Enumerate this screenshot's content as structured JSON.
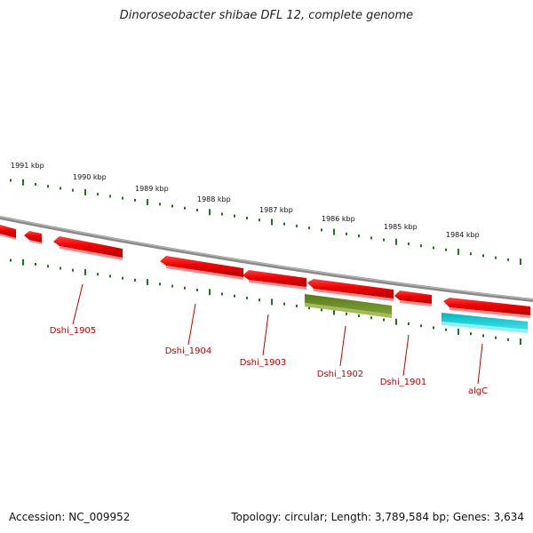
{
  "title": "Dinoroseobacter shibae DFL 12, complete genome",
  "footer": {
    "accession": "Accession: NC_009952",
    "summary": "Topology: circular; Length: 3,789,584 bp; Genes: 3,634"
  },
  "colors": {
    "backbone": "#888888",
    "tick": "#1a7a1a",
    "gene_red": "#ee0000",
    "gene_olive": "#6b8e23",
    "gene_cyan": "#00c8d0",
    "label": "#c00000"
  },
  "scale_labels": [
    "1991 kbp",
    "1990 kbp",
    "1989 kbp",
    "1988 kbp",
    "1987 kbp",
    "1986 kbp",
    "1985 kbp",
    "1984 kbp"
  ],
  "gene_labels": [
    "Dshi_1905",
    "Dshi_1904",
    "Dshi_1903",
    "Dshi_1902",
    "Dshi_1901",
    "algC"
  ]
}
